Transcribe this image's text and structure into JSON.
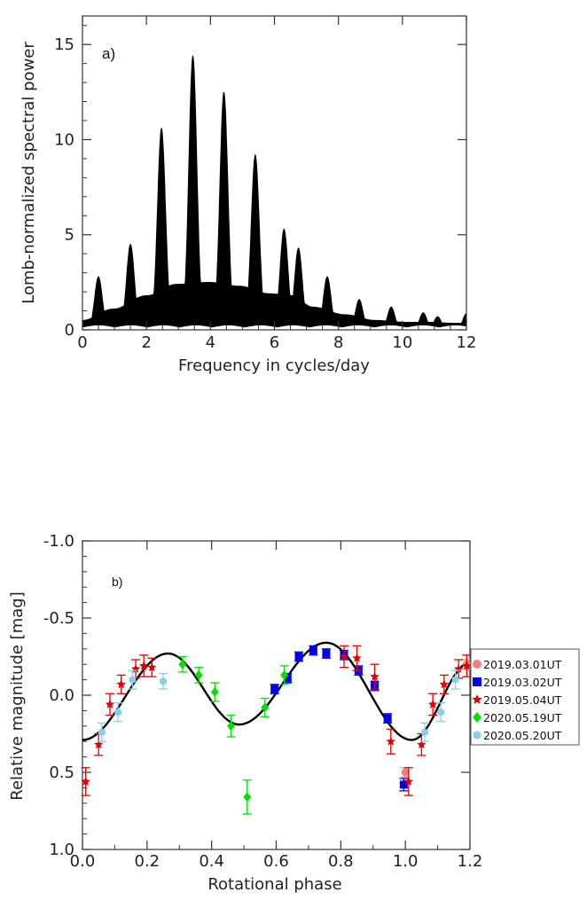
{
  "chart_data": [
    {
      "type": "line",
      "panel_label": "a)",
      "xlabel": "Frequency in cycles/day",
      "ylabel": "Lomb-normalized spectral power",
      "xlim": [
        0,
        12
      ],
      "ylim": [
        0,
        16.5
      ],
      "xticks": [
        0,
        2,
        4,
        6,
        8,
        10,
        12
      ],
      "yticks": [
        0,
        5,
        10,
        15
      ],
      "grid": false,
      "peaks": [
        {
          "x": 0.5,
          "y": 2.8
        },
        {
          "x": 1.5,
          "y": 4.5
        },
        {
          "x": 2.47,
          "y": 10.6
        },
        {
          "x": 3.45,
          "y": 14.4
        },
        {
          "x": 4.42,
          "y": 12.5
        },
        {
          "x": 5.4,
          "y": 9.2
        },
        {
          "x": 6.3,
          "y": 5.3
        },
        {
          "x": 6.75,
          "y": 4.3
        },
        {
          "x": 7.65,
          "y": 2.8
        },
        {
          "x": 8.65,
          "y": 1.6
        },
        {
          "x": 9.65,
          "y": 1.2
        },
        {
          "x": 10.65,
          "y": 0.9
        },
        {
          "x": 11.1,
          "y": 0.7
        },
        {
          "x": 12.0,
          "y": 0.85
        }
      ],
      "minima": [
        {
          "x": 0.0,
          "y": 0.5
        },
        {
          "x": 0.97,
          "y": 1.1
        },
        {
          "x": 2.0,
          "y": 1.8
        },
        {
          "x": 2.95,
          "y": 2.4
        },
        {
          "x": 3.95,
          "y": 2.5
        },
        {
          "x": 4.9,
          "y": 2.3
        },
        {
          "x": 5.85,
          "y": 1.9
        },
        {
          "x": 6.55,
          "y": 1.8
        },
        {
          "x": 7.2,
          "y": 1.2
        },
        {
          "x": 8.2,
          "y": 0.8
        },
        {
          "x": 9.15,
          "y": 0.5
        },
        {
          "x": 10.15,
          "y": 0.4
        },
        {
          "x": 10.9,
          "y": 0.4
        },
        {
          "x": 11.6,
          "y": 0.35
        }
      ]
    },
    {
      "type": "scatter",
      "panel_label": "b)",
      "xlabel": "Rotational phase",
      "ylabel": "Relative magnitude [mag]",
      "xlim": [
        0.0,
        1.2
      ],
      "ylim": [
        1.0,
        -1.0
      ],
      "y_inverted": true,
      "xticks": [
        0.0,
        0.2,
        0.4,
        0.6,
        0.8,
        1.0,
        1.2
      ],
      "xtick_labels": [
        "0.0",
        "0.2",
        "0.4",
        "0.6",
        "0.8",
        "1.0",
        "1.2"
      ],
      "yticks": [
        -1.0,
        -0.5,
        0.0,
        0.5,
        1.0
      ],
      "ytick_labels": [
        "-1.0",
        "-0.5",
        "0.0",
        "0.5",
        "1.0"
      ],
      "grid": false,
      "legend_position": "outside-right",
      "fit_curve": {
        "knots": [
          {
            "x": 0.0,
            "y": 0.29
          },
          {
            "x": 0.265,
            "y": -0.27
          },
          {
            "x": 0.485,
            "y": 0.19
          },
          {
            "x": 0.755,
            "y": -0.34
          },
          {
            "x": 1.02,
            "y": 0.29
          },
          {
            "x": 1.2,
            "y": -0.21
          }
        ]
      },
      "series": [
        {
          "name": "2019.03.01UT",
          "color": "#f08080",
          "marker": "circle",
          "points": [
            {
              "x": 1.0,
              "y": 0.5,
              "err": 0.03
            },
            {
              "x": 1.19,
              "y": -0.2,
              "err": 0.03
            }
          ]
        },
        {
          "name": "2019.03.02UT",
          "color": "#0000ee",
          "marker": "square",
          "points": [
            {
              "x": 0.595,
              "y": -0.04,
              "err": 0.03
            },
            {
              "x": 0.635,
              "y": -0.11,
              "err": 0.03
            },
            {
              "x": 0.67,
              "y": -0.25,
              "err": 0.03
            },
            {
              "x": 0.715,
              "y": -0.29,
              "err": 0.03
            },
            {
              "x": 0.755,
              "y": -0.27,
              "err": 0.03
            },
            {
              "x": 0.81,
              "y": -0.26,
              "err": 0.03
            },
            {
              "x": 0.855,
              "y": -0.16,
              "err": 0.03
            },
            {
              "x": 0.905,
              "y": -0.06,
              "err": 0.03
            },
            {
              "x": 0.945,
              "y": 0.15,
              "err": 0.03
            },
            {
              "x": 0.995,
              "y": 0.58,
              "err": 0.04
            }
          ]
        },
        {
          "name": "2019.05.04UT",
          "color": "#e00000",
          "marker": "star",
          "points": [
            {
              "x": 0.01,
              "y": 0.56,
              "err": 0.09
            },
            {
              "x": 0.05,
              "y": 0.32,
              "err": 0.07
            },
            {
              "x": 0.085,
              "y": 0.06,
              "err": 0.07
            },
            {
              "x": 0.12,
              "y": -0.07,
              "err": 0.06
            },
            {
              "x": 0.165,
              "y": -0.17,
              "err": 0.06
            },
            {
              "x": 0.19,
              "y": -0.19,
              "err": 0.07
            },
            {
              "x": 0.215,
              "y": -0.18,
              "err": 0.06
            },
            {
              "x": 0.81,
              "y": -0.25,
              "err": 0.07
            },
            {
              "x": 0.85,
              "y": -0.24,
              "err": 0.08
            },
            {
              "x": 0.905,
              "y": -0.12,
              "err": 0.08
            },
            {
              "x": 0.955,
              "y": 0.3,
              "err": 0.08
            },
            {
              "x": 1.01,
              "y": 0.56,
              "err": 0.09
            },
            {
              "x": 1.05,
              "y": 0.32,
              "err": 0.07
            },
            {
              "x": 1.085,
              "y": 0.06,
              "err": 0.07
            },
            {
              "x": 1.12,
              "y": -0.07,
              "err": 0.06
            },
            {
              "x": 1.165,
              "y": -0.17,
              "err": 0.06
            },
            {
              "x": 1.19,
              "y": -0.19,
              "err": 0.07
            }
          ]
        },
        {
          "name": "2020.05.19UT",
          "color": "#00e000",
          "marker": "diamond",
          "points": [
            {
              "x": 0.31,
              "y": -0.2,
              "err": 0.05
            },
            {
              "x": 0.36,
              "y": -0.13,
              "err": 0.05
            },
            {
              "x": 0.41,
              "y": -0.02,
              "err": 0.06
            },
            {
              "x": 0.46,
              "y": 0.2,
              "err": 0.07
            },
            {
              "x": 0.51,
              "y": 0.66,
              "err": 0.11
            },
            {
              "x": 0.565,
              "y": 0.08,
              "err": 0.06
            },
            {
              "x": 0.625,
              "y": -0.13,
              "err": 0.06
            }
          ]
        },
        {
          "name": "2020.05.20UT",
          "color": "#87ceeb",
          "marker": "hexagon",
          "points": [
            {
              "x": 0.06,
              "y": 0.24,
              "err": 0.06
            },
            {
              "x": 0.11,
              "y": 0.11,
              "err": 0.06
            },
            {
              "x": 0.155,
              "y": -0.1,
              "err": 0.06
            },
            {
              "x": 0.25,
              "y": -0.09,
              "err": 0.05
            },
            {
              "x": 1.06,
              "y": 0.24,
              "err": 0.06
            },
            {
              "x": 1.11,
              "y": 0.11,
              "err": 0.06
            },
            {
              "x": 1.155,
              "y": -0.1,
              "err": 0.06
            }
          ]
        }
      ]
    }
  ]
}
